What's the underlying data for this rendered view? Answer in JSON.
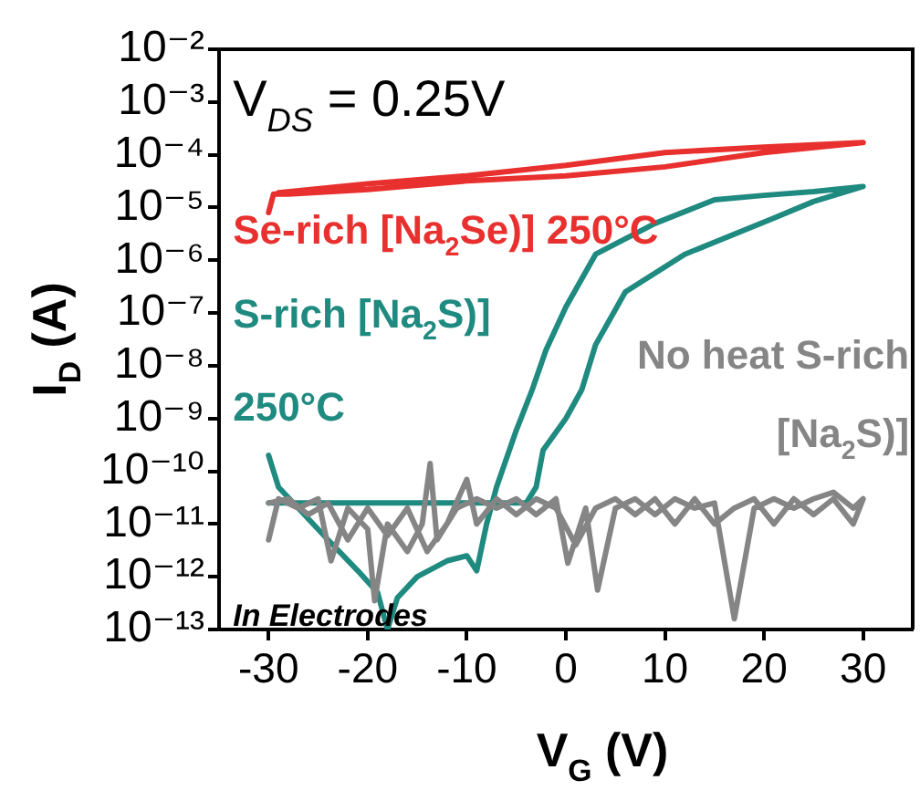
{
  "chart_data": {
    "type": "line",
    "xlabel": "V$_{G}$ (V)",
    "ylabel": "I$_{D}$ (A)",
    "log": "y",
    "xlim": [
      -35,
      35
    ],
    "xticks": [
      -30,
      -20,
      -10,
      0,
      10,
      20,
      30
    ],
    "ylim": [
      1e-13,
      0.01
    ],
    "yticks": [
      {
        "value": 1e-13,
        "label": "10⁻¹³"
      },
      {
        "value": 1e-12,
        "label": "10⁻¹²"
      },
      {
        "value": 1e-11,
        "label": "10⁻¹¹"
      },
      {
        "value": 1e-10,
        "label": "10⁻¹⁰"
      },
      {
        "value": 1e-09,
        "label": "10⁻⁹"
      },
      {
        "value": 1e-08,
        "label": "10⁻⁸"
      },
      {
        "value": 1e-07,
        "label": "10⁻⁷"
      },
      {
        "value": 1e-06,
        "label": "10⁻⁶"
      },
      {
        "value": 1e-05,
        "label": "10⁻⁵"
      },
      {
        "value": 0.0001,
        "label": "10⁻⁴"
      },
      {
        "value": 0.001,
        "label": "10⁻³"
      },
      {
        "value": 0.01,
        "label": "10⁻²"
      }
    ],
    "grid": false,
    "legend": false,
    "annotations": [
      "V$_{DS}$ = 0.25V",
      "In Electrodes"
    ],
    "series": [
      {
        "name": "Se-rich [Na$_{2}$Se)] 250°C",
        "color": "#e8302e",
        "x": [
          -30,
          -29.5,
          -28,
          -20,
          -10,
          0,
          10,
          20,
          30,
          20,
          10,
          0,
          -10,
          -20,
          -29
        ],
        "values": [
          8e-06,
          1.8e-05,
          1.8e-05,
          2.2e-05,
          3.2e-05,
          4e-05,
          5.9e-05,
          0.00011,
          0.00017,
          0.00014,
          0.00011,
          6.3e-05,
          4e-05,
          2.8e-05,
          1.9e-05
        ]
      },
      {
        "name": "S-rich [Na$_{2}$S)] 250°C",
        "color": "#1f8a80",
        "x": [
          -30,
          -29,
          -27,
          -24,
          -21,
          -19,
          -18,
          -17,
          -15,
          -12,
          -10,
          -9,
          -8,
          -7,
          -5,
          -3.4,
          -2,
          0,
          3,
          9,
          15,
          20,
          25,
          30,
          25,
          21,
          12,
          6,
          3,
          1.6,
          0,
          -2.3,
          -3,
          -4,
          -8,
          -15,
          -22,
          -30
        ],
        "values": [
          2e-10,
          5e-11,
          2e-11,
          5e-12,
          1.3e-12,
          5e-13,
          1e-13,
          4e-13,
          1e-12,
          2e-12,
          2.5e-12,
          1.3e-12,
          1e-11,
          5e-11,
          6e-10,
          3.5e-09,
          2e-08,
          1.3e-07,
          1.3e-06,
          5e-06,
          1.4e-05,
          1.7e-05,
          2e-05,
          2.5e-05,
          1.3e-05,
          6.3e-06,
          1.3e-06,
          2.5e-07,
          2.5e-08,
          3.5e-09,
          1e-09,
          2.5e-10,
          5e-11,
          2.5e-11,
          2.5e-11,
          2.5e-11,
          2.5e-11,
          2.5e-11
        ]
      },
      {
        "name": "No heat S-rich [Na$_{2}$S)]",
        "color": "#858585",
        "x": [
          -30,
          -29,
          -27,
          -25,
          -23.7,
          -22,
          -20,
          -19.3,
          -18,
          -16,
          -14.5,
          -13.7,
          -13,
          -11,
          -9,
          -7,
          -5,
          -3,
          -1,
          0.2,
          2,
          3.2,
          5,
          7,
          9,
          11,
          13,
          15,
          17,
          19,
          21,
          23,
          25,
          27,
          29,
          30,
          29,
          27,
          25,
          23,
          21,
          19,
          17,
          15,
          13,
          11,
          9,
          7,
          5,
          3,
          1,
          -1,
          -3,
          -5,
          -7,
          -9,
          -10,
          -12,
          -14,
          -16,
          -18,
          -20,
          -22,
          -24,
          -26,
          -28,
          -30
        ],
        "values": [
          5e-12,
          3e-11,
          2e-11,
          3e-11,
          2e-12,
          2e-11,
          8e-12,
          3.5e-13,
          1e-11,
          3e-12,
          1e-11,
          1.4e-10,
          5e-12,
          2e-11,
          3e-11,
          2e-11,
          3e-11,
          1.5e-11,
          3e-11,
          1.8e-12,
          2e-11,
          5.6e-13,
          2e-11,
          3e-11,
          1.5e-11,
          3e-11,
          2e-11,
          2.5e-11,
          1.6e-13,
          2e-11,
          3e-11,
          2e-11,
          3e-11,
          4e-11,
          2e-11,
          3e-11,
          1e-11,
          3e-11,
          1.5e-11,
          3e-11,
          1e-11,
          3e-11,
          2e-11,
          1e-11,
          3e-11,
          1e-11,
          3e-11,
          1.5e-11,
          3e-11,
          2e-11,
          4e-12,
          2e-11,
          3e-11,
          1.5e-11,
          3e-11,
          1e-11,
          7e-11,
          1e-11,
          3e-12,
          2e-11,
          6e-12,
          2e-11,
          5e-12,
          2.5e-11,
          1.5e-11,
          3e-11,
          2.5e-11
        ]
      }
    ]
  }
}
